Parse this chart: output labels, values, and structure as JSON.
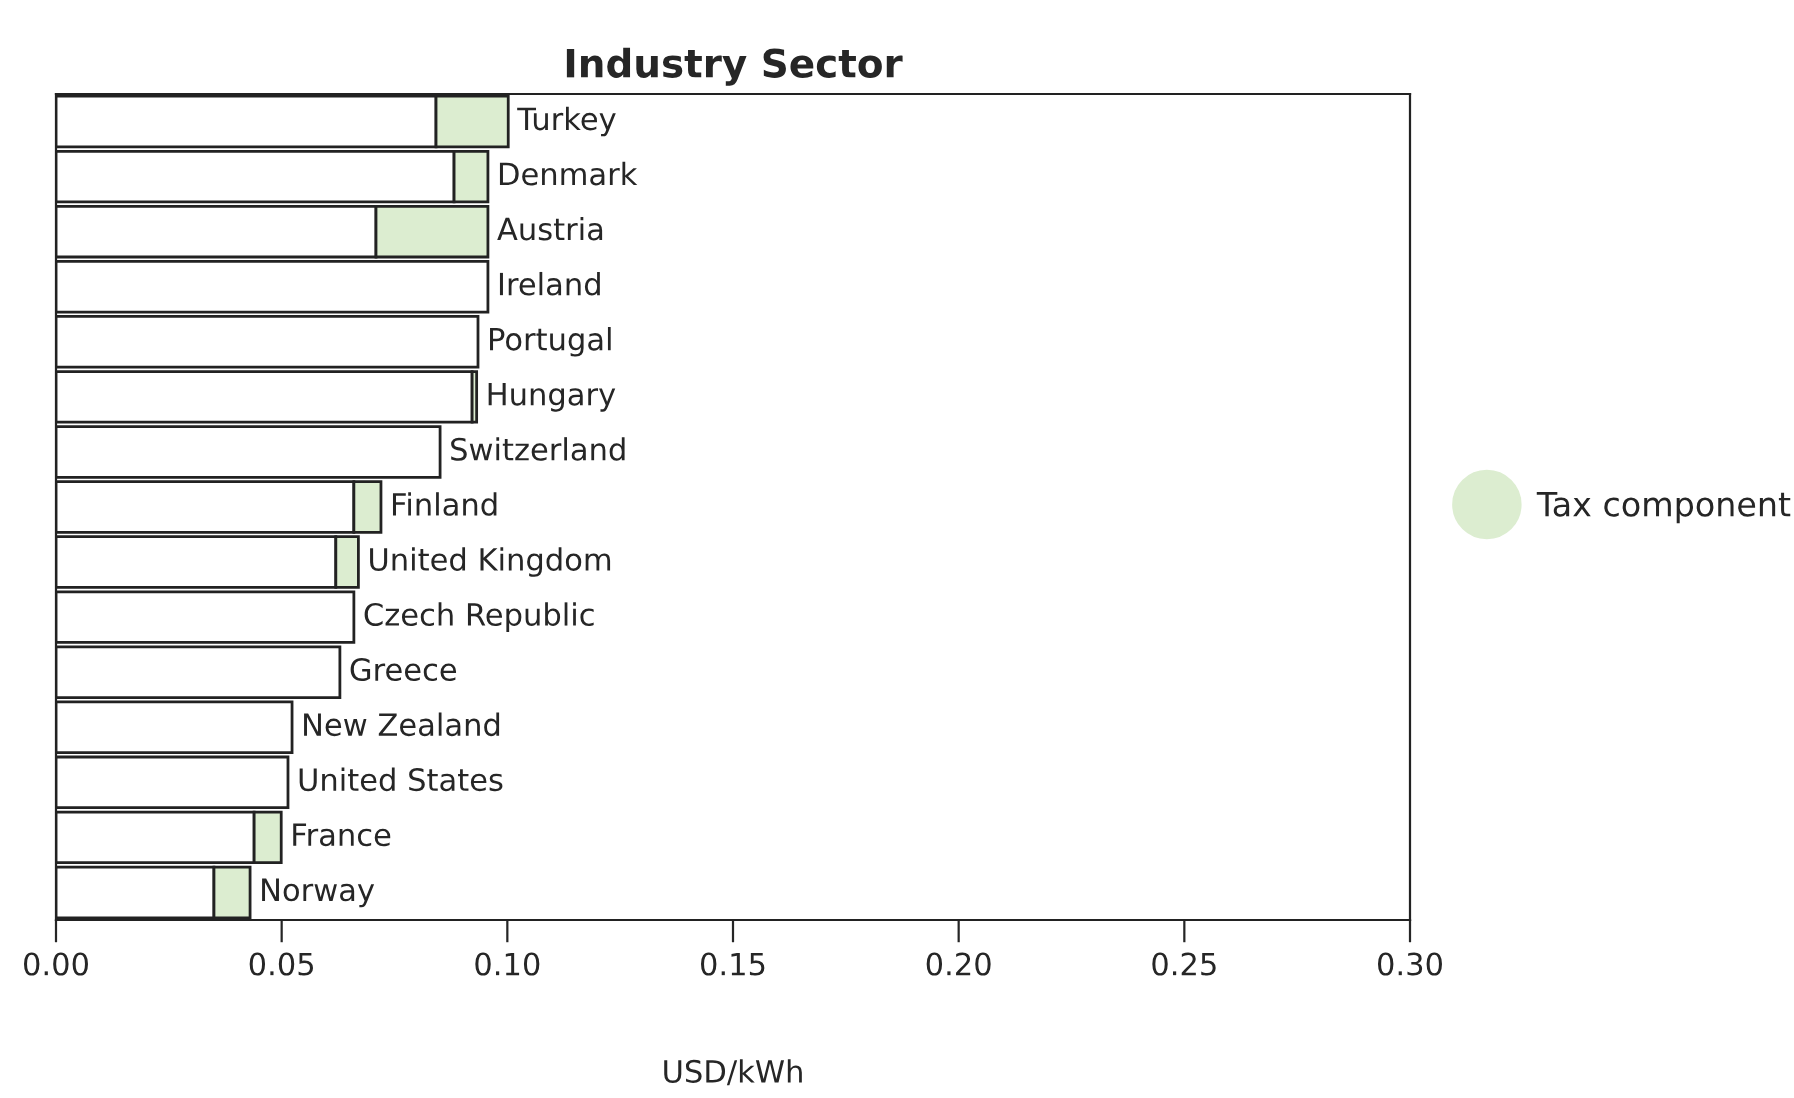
{
  "chart_data": {
    "type": "bar",
    "orientation": "horizontal",
    "stacked": true,
    "title": "Industry Sector",
    "xlabel": "USD/kWh",
    "categories": [
      "Turkey",
      "Denmark",
      "Austria",
      "Ireland",
      "Portugal",
      "Hungary",
      "Switzerland",
      "Finland",
      "United Kingdom",
      "Czech Republic",
      "Greece",
      "New Zealand",
      "United States",
      "France",
      "Norway"
    ],
    "series": [
      {
        "color": "#ffffff",
        "values": [
          0.0842,
          0.0882,
          0.0709,
          0.0957,
          0.0935,
          0.0922,
          0.0851,
          0.066,
          0.062,
          0.066,
          0.0629,
          0.0523,
          0.0514,
          0.0439,
          0.035
        ]
      },
      {
        "name": "Tax component",
        "color": "#dcedd0",
        "values": [
          0.016,
          0.0075,
          0.0248,
          null,
          null,
          0.001,
          null,
          0.006,
          0.005,
          null,
          null,
          null,
          null,
          0.006,
          0.008
        ]
      }
    ],
    "xlim": [
      0,
      0.3
    ],
    "xticks": [
      {
        "value": 0,
        "label": "0.00"
      },
      {
        "value": 0.05,
        "label": "0.05"
      },
      {
        "value": 0.1,
        "label": "0.10"
      },
      {
        "value": 0.15,
        "label": "0.15"
      },
      {
        "value": 0.2,
        "label": "0.20"
      },
      {
        "value": 0.25,
        "label": "0.25"
      },
      {
        "value": 0.3,
        "label": "0.30"
      }
    ],
    "grid": false,
    "legend": "right"
  }
}
